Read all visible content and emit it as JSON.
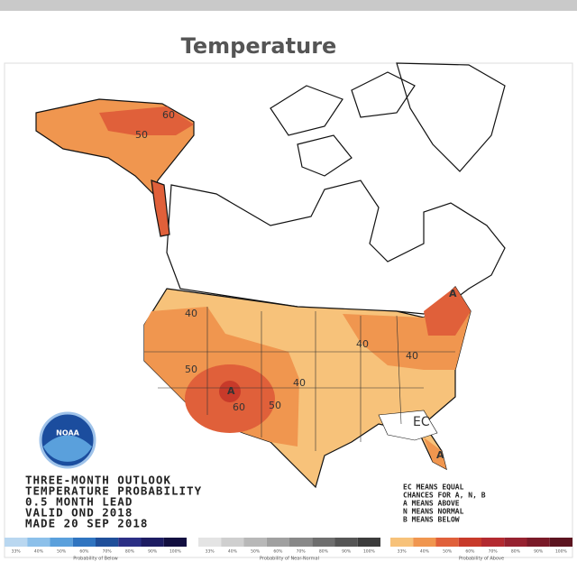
{
  "title": "Temperature",
  "map": {
    "contour_labels": [
      "60",
      "50",
      "40",
      "50",
      "40",
      "60",
      "50",
      "40",
      "40",
      "A",
      "A",
      "A",
      "EC"
    ],
    "logo": "NOAA",
    "outlook_lines": [
      "THREE-MONTH OUTLOOK",
      "TEMPERATURE PROBABILITY",
      "0.5 MONTH LEAD",
      "VALID OND 2018",
      "MADE 20 SEP 2018"
    ],
    "key_lines": [
      "EC MEANS EQUAL",
      "CHANCES FOR A, N, B",
      "A MEANS ABOVE",
      "N MEANS NORMAL",
      "B MEANS BELOW"
    ]
  },
  "legend_scales": [
    {
      "title": "Probability of Below",
      "colors": [
        "#b9d7f0",
        "#8cc0ea",
        "#5aa0dc",
        "#2f74c0",
        "#1f4f9a",
        "#2b2f85",
        "#1d1c62",
        "#120f40"
      ],
      "ticks": [
        "33%",
        "40%",
        "50%",
        "60%",
        "70%",
        "80%",
        "90%",
        "100%"
      ]
    },
    {
      "title": "Probability of Near-Normal",
      "colors": [
        "#e4e4e4",
        "#cfcfcf",
        "#b8b8b8",
        "#a0a0a0",
        "#888888",
        "#6e6e6e",
        "#555555",
        "#3c3c3c"
      ],
      "ticks": [
        "33%",
        "40%",
        "50%",
        "60%",
        "70%",
        "80%",
        "90%",
        "100%"
      ]
    },
    {
      "title": "Probability of Above",
      "colors": [
        "#f7c27a",
        "#f0964f",
        "#e0603a",
        "#c83a2a",
        "#b32a30",
        "#962230",
        "#7a1a28",
        "#5c1420"
      ],
      "ticks": [
        "33%",
        "40%",
        "50%",
        "60%",
        "70%",
        "80%",
        "90%",
        "100%"
      ]
    }
  ]
}
